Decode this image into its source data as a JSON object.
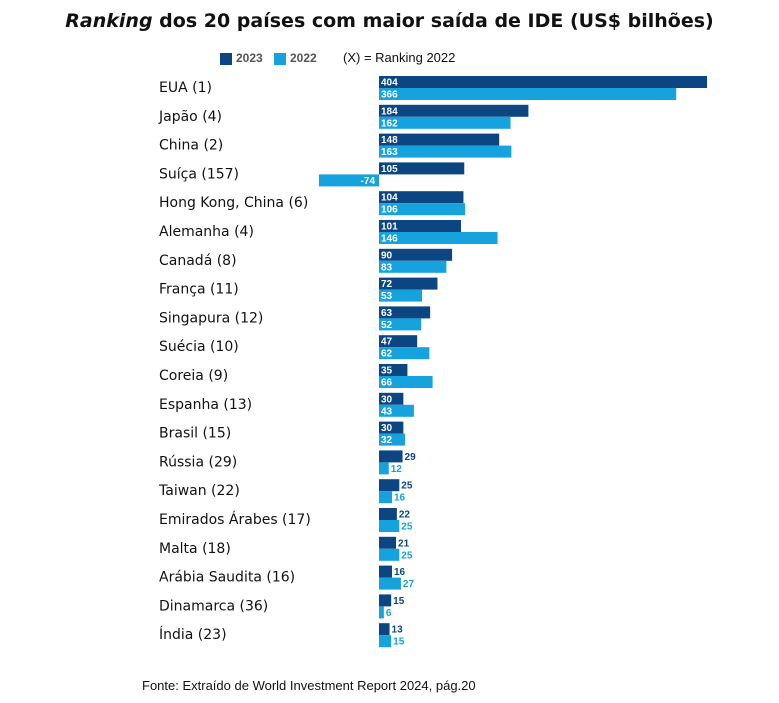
{
  "title_italic": "Ranking",
  "title_rest": " dos 20 países com maior saída de IDE (US$ bilhões)",
  "legend_note": "(X) = Ranking 2022",
  "source_note": "Fonte: Extraído de World Investment Report 2024, pág.20",
  "colors": {
    "series_2023": "#0b4582",
    "series_2022": "#16a2dc"
  },
  "chart_data": {
    "type": "bar",
    "orientation": "horizontal",
    "title": "Ranking dos 20 países com maior saída de IDE (US$ bilhões)",
    "categories": [
      "EUA (1)",
      "Japão (4)",
      "China (2)",
      "Suíça (157)",
      "Hong Kong, China (6)",
      "Alemanha (4)",
      "Canadá (8)",
      "França (11)",
      "Singapura (12)",
      "Suécia (10)",
      "Coreia (9)",
      "Espanha (13)",
      "Brasil (15)",
      "Rússia (29)",
      "Taiwan (22)",
      "Emirados Árabes (17)",
      "Malta (18)",
      "Arábia Saudita (16)",
      "Dinamarca (36)",
      "Índia (23)"
    ],
    "series": [
      {
        "name": "2023",
        "values": [
          404,
          184,
          148,
          105,
          104,
          101,
          90,
          72,
          63,
          47,
          35,
          30,
          30,
          29,
          25,
          22,
          21,
          16,
          15,
          13
        ]
      },
      {
        "name": "2022",
        "values": [
          366,
          162,
          163,
          -74,
          106,
          146,
          83,
          53,
          52,
          62,
          66,
          43,
          32,
          12,
          16,
          25,
          25,
          27,
          6,
          15
        ]
      }
    ],
    "xlim": [
      -74,
      404
    ],
    "legend": "top-left",
    "grid": false
  }
}
